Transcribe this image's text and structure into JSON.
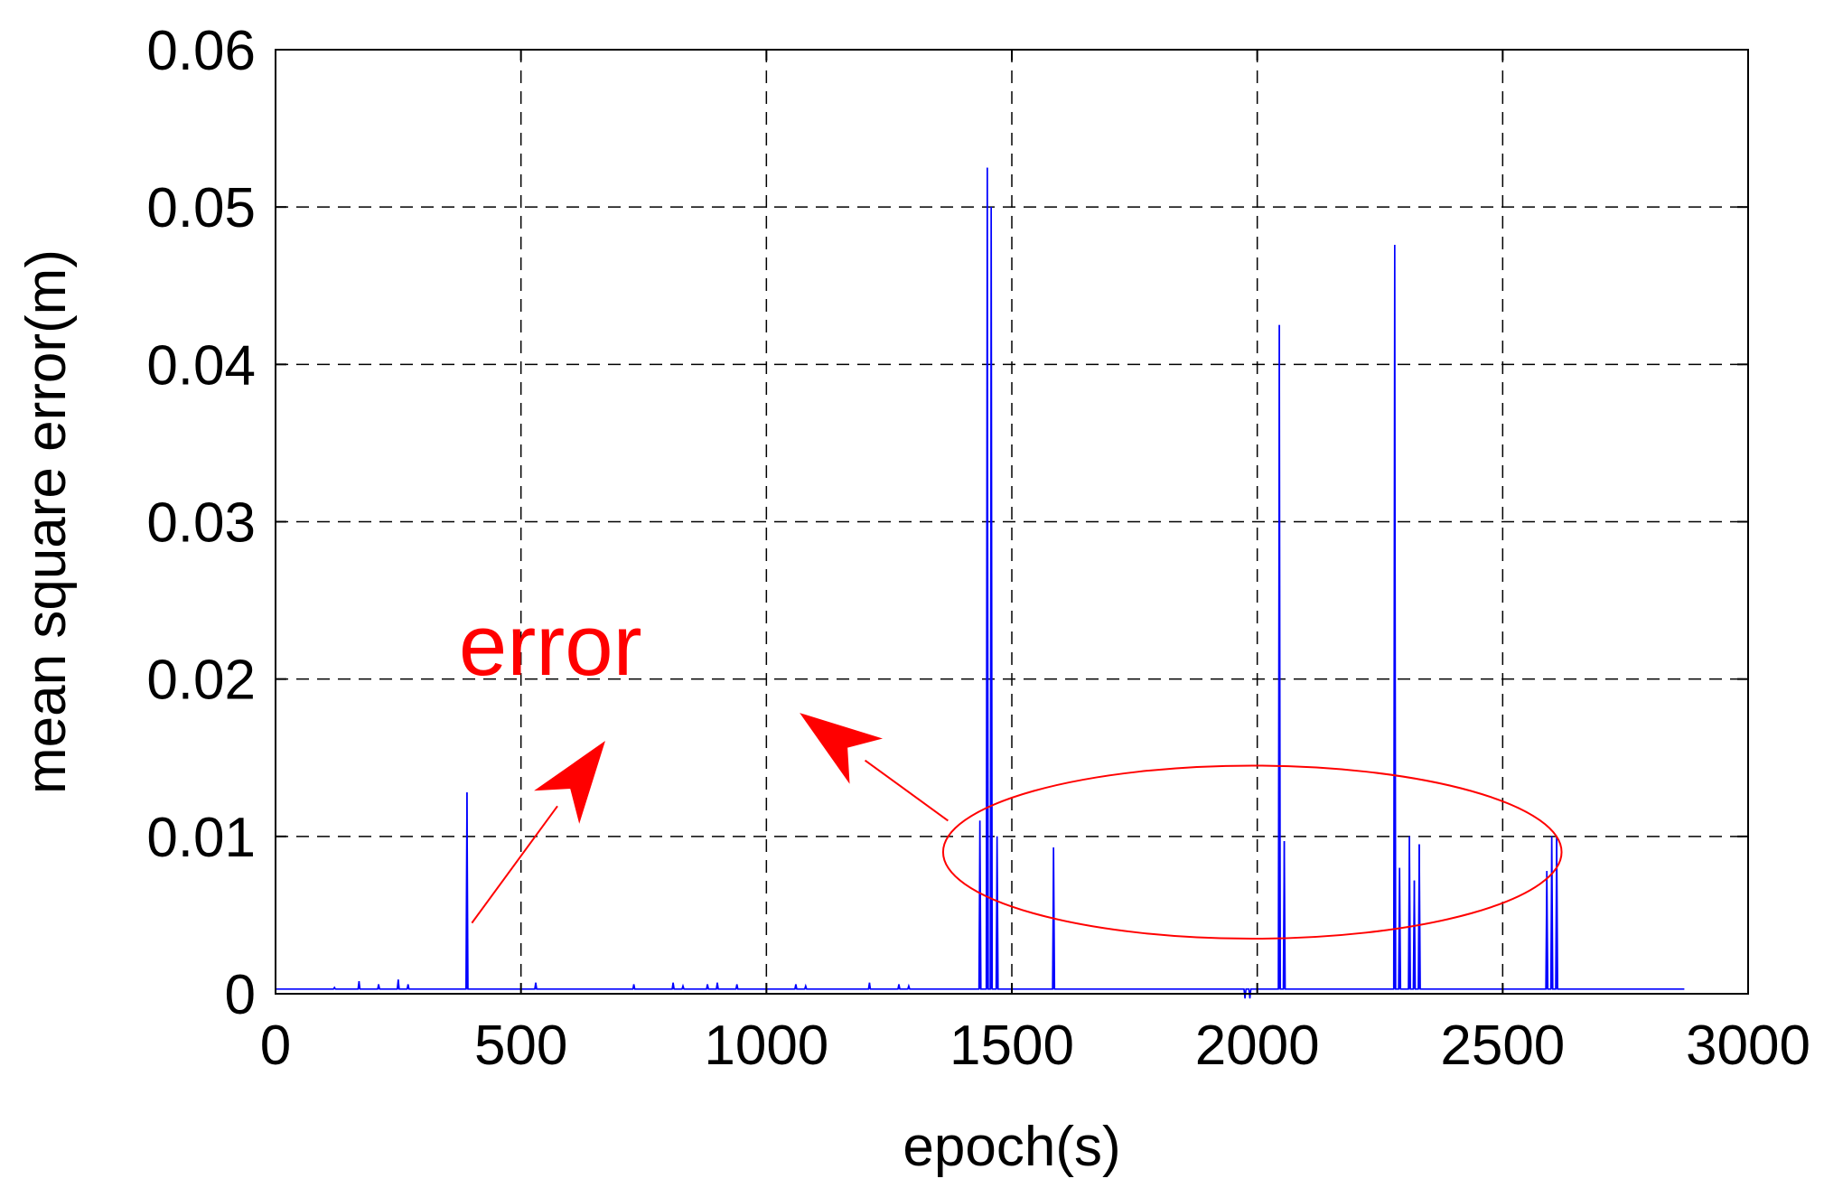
{
  "chart_data": {
    "type": "line",
    "title": "",
    "xlabel": "epoch(s)",
    "ylabel": "mean square error(m)",
    "xlim": [
      0,
      3000
    ],
    "ylim": [
      0,
      0.06
    ],
    "xticks": [
      0,
      500,
      1000,
      1500,
      2000,
      2500,
      3000
    ],
    "yticks": [
      0,
      0.01,
      0.02,
      0.03,
      0.04,
      0.05,
      0.06
    ],
    "xtick_labels": [
      "0",
      "500",
      "1000",
      "1500",
      "2000",
      "2500",
      "3000"
    ],
    "ytick_labels": [
      "0",
      "0.01",
      "0.02",
      "0.03",
      "0.04",
      "0.05",
      "0.06"
    ],
    "grid": true,
    "grid_style": "dashed",
    "series": [
      {
        "name": "",
        "color": "#0000ff",
        "baseline": 0.0003,
        "spikes": [
          [
            120,
            0.0004
          ],
          [
            170,
            0.0008
          ],
          [
            210,
            0.0006
          ],
          [
            250,
            0.0009
          ],
          [
            270,
            0.0006
          ],
          [
            390,
            0.0128
          ],
          [
            530,
            0.0007
          ],
          [
            730,
            0.0006
          ],
          [
            810,
            0.0007
          ],
          [
            830,
            0.0005
          ],
          [
            880,
            0.0006
          ],
          [
            900,
            0.0007
          ],
          [
            940,
            0.0006
          ],
          [
            1060,
            0.0006
          ],
          [
            1080,
            0.0005
          ],
          [
            1210,
            0.0007
          ],
          [
            1270,
            0.0006
          ],
          [
            1290,
            0.0005
          ],
          [
            1435,
            0.011
          ],
          [
            1450,
            0.0525
          ],
          [
            1458,
            0.05
          ],
          [
            1470,
            0.01
          ],
          [
            1585,
            0.0093
          ],
          [
            2045,
            0.0425
          ],
          [
            2055,
            0.0097
          ],
          [
            2280,
            0.0476
          ],
          [
            2290,
            0.008
          ],
          [
            2310,
            0.01
          ],
          [
            2320,
            0.0072
          ],
          [
            2330,
            0.0095
          ],
          [
            2590,
            0.0078
          ],
          [
            2600,
            0.01
          ],
          [
            2610,
            0.01
          ]
        ],
        "dips": [
          [
            1975,
            -0.0003
          ],
          [
            1985,
            -0.0003
          ]
        ],
        "x_end": 2870
      }
    ],
    "annotations": [
      {
        "text": "error",
        "color": "#ff0000",
        "x": 560,
        "y": 0.022
      }
    ],
    "highlight_ellipse": {
      "color": "#ff0000",
      "cx": 1990,
      "cy": 0.009,
      "rx": 630,
      "ry": 0.0055
    },
    "arrows": [
      {
        "color": "#ff0000",
        "from": [
          400,
          0.0045
        ],
        "to": [
          670,
          0.016
        ]
      },
      {
        "color": "#ff0000",
        "from": [
          1370,
          0.011
        ],
        "to": [
          1070,
          0.0178
        ]
      }
    ]
  }
}
